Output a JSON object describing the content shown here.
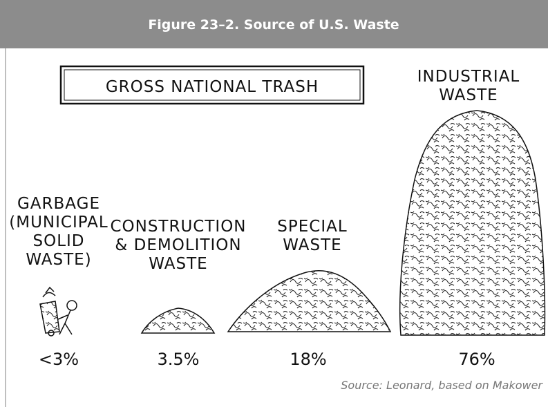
{
  "header": {
    "title": "Figure 23–2. Source of U.S. Waste"
  },
  "heading": "GROSS NATIONAL TRASH",
  "items": [
    {
      "label": [
        "GARBAGE",
        "(MUNICIPAL",
        "SOLID",
        "WASTE)"
      ],
      "percent": "<3%"
    },
    {
      "label": [
        "CONSTRUCTION",
        "& DEMOLITION",
        "WASTE"
      ],
      "percent": "3.5%"
    },
    {
      "label": [
        "SPECIAL",
        "WASTE"
      ],
      "percent": "18%"
    },
    {
      "label": [
        "INDUSTRIAL",
        "WASTE"
      ],
      "percent": "76%"
    }
  ],
  "source": "Source: Leonard, based on Makower"
}
